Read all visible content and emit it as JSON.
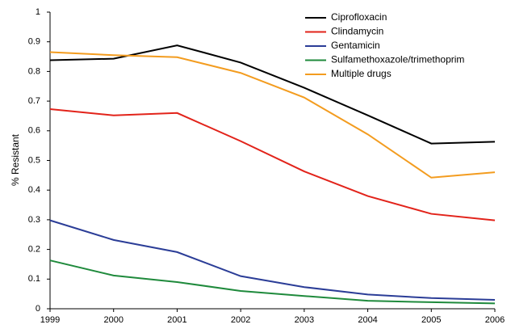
{
  "chart_data": {
    "type": "line",
    "y_label": "% Resistant",
    "x": [
      1999,
      2000,
      2001,
      2002,
      2003,
      2004,
      2005,
      2006
    ],
    "xlim": [
      1999,
      2006
    ],
    "xticks": [
      1999,
      2000,
      2001,
      2002,
      2003,
      2004,
      2005,
      2006
    ],
    "ylim": [
      0,
      1
    ],
    "yticks": [
      0,
      0.1,
      0.2,
      0.3,
      0.4,
      0.5,
      0.6,
      0.7,
      0.8,
      0.9,
      1
    ],
    "legend": "upper-right",
    "series": [
      {
        "name": "Ciprofloxacin",
        "color": "#000000",
        "values": [
          0.838,
          0.843,
          0.888,
          0.83,
          0.745,
          0.652,
          0.557,
          0.563
        ]
      },
      {
        "name": "Clindamycin",
        "color": "#e2231a",
        "values": [
          0.673,
          0.652,
          0.66,
          0.565,
          0.463,
          0.38,
          0.32,
          0.298
        ]
      },
      {
        "name": "Gentamicin",
        "color": "#2b3d97",
        "values": [
          0.298,
          0.232,
          0.191,
          0.11,
          0.073,
          0.048,
          0.036,
          0.03
        ]
      },
      {
        "name": "Sulfamethoxazole/trimethoprim",
        "color": "#1f8a3c",
        "values": [
          0.163,
          0.112,
          0.09,
          0.06,
          0.043,
          0.027,
          0.022,
          0.018
        ]
      },
      {
        "name": "Multiple drugs",
        "color": "#f39c1f",
        "values": [
          0.865,
          0.855,
          0.848,
          0.795,
          0.712,
          0.588,
          0.442,
          0.46
        ]
      }
    ]
  }
}
